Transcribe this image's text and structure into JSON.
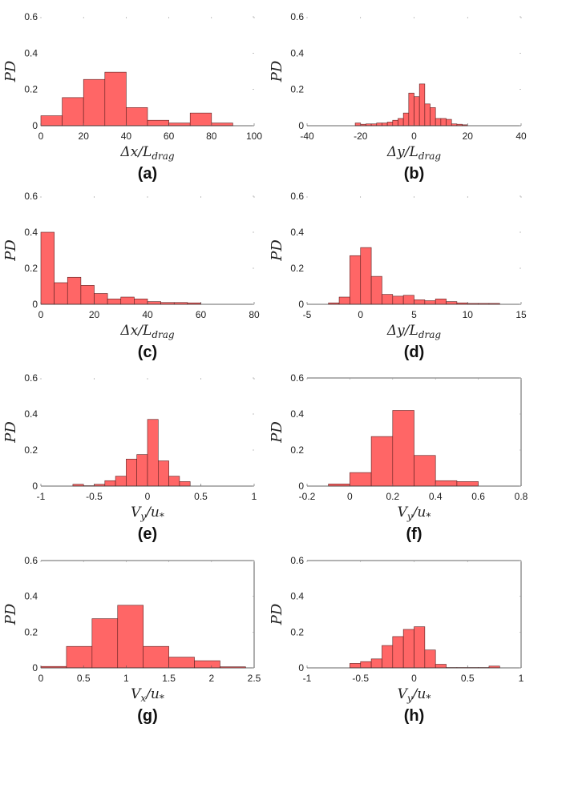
{
  "figure": {
    "bar_color": "#ff6666",
    "bar_edge": "#5a1f1f"
  },
  "chart_data": [
    {
      "type": "bar",
      "caption": "(a)",
      "xlabel": "Δx/L",
      "xlabel_sub": "drag",
      "ylabel": "PD",
      "xlim": [
        0,
        100
      ],
      "ylim": [
        0,
        0.6
      ],
      "xticks": [
        0,
        20,
        40,
        60,
        80,
        100
      ],
      "xtick_labels": [
        "0",
        "20",
        "40",
        "60",
        "80",
        "100"
      ],
      "yticks": [
        0,
        0.2,
        0.4,
        0.6
      ],
      "ytick_labels": [
        "0",
        "0.2",
        "0.4",
        "0.6"
      ],
      "axes_box": false,
      "bins": [
        [
          0,
          10,
          0.055
        ],
        [
          10,
          20,
          0.155
        ],
        [
          20,
          30,
          0.255
        ],
        [
          30,
          40,
          0.295
        ],
        [
          40,
          50,
          0.1
        ],
        [
          50,
          60,
          0.03
        ],
        [
          60,
          70,
          0.015
        ],
        [
          70,
          80,
          0.07
        ],
        [
          80,
          90,
          0.015
        ]
      ]
    },
    {
      "type": "bar",
      "caption": "(b)",
      "xlabel": "Δy/L",
      "xlabel_sub": "drag",
      "ylabel": "PD",
      "xlim": [
        -40,
        40
      ],
      "ylim": [
        0,
        0.6
      ],
      "xticks": [
        -40,
        -20,
        0,
        20,
        40
      ],
      "xtick_labels": [
        "-40",
        "-20",
        "0",
        "20",
        "40"
      ],
      "yticks": [
        0,
        0.2,
        0.4,
        0.6
      ],
      "ytick_labels": [
        "0",
        "0.2",
        "0.4",
        "0.6"
      ],
      "axes_box": false,
      "bins": [
        [
          -22,
          -20,
          0.015
        ],
        [
          -20,
          -18,
          0.008
        ],
        [
          -18,
          -16,
          0.01
        ],
        [
          -16,
          -14,
          0.01
        ],
        [
          -14,
          -12,
          0.015
        ],
        [
          -12,
          -10,
          0.015
        ],
        [
          -10,
          -8,
          0.02
        ],
        [
          -8,
          -6,
          0.03
        ],
        [
          -6,
          -4,
          0.04
        ],
        [
          -4,
          -2,
          0.07
        ],
        [
          -2,
          0,
          0.18
        ],
        [
          0,
          2,
          0.16
        ],
        [
          2,
          4,
          0.23
        ],
        [
          4,
          6,
          0.12
        ],
        [
          6,
          8,
          0.1
        ],
        [
          8,
          10,
          0.04
        ],
        [
          10,
          12,
          0.04
        ],
        [
          12,
          14,
          0.035
        ],
        [
          14,
          16,
          0.01
        ],
        [
          16,
          18,
          0.008
        ],
        [
          18,
          20,
          0.005
        ]
      ]
    },
    {
      "type": "bar",
      "caption": "(c)",
      "xlabel": "Δx/L",
      "xlabel_sub": "drag",
      "ylabel": "PD",
      "xlim": [
        0,
        80
      ],
      "ylim": [
        0,
        0.6
      ],
      "xticks": [
        0,
        20,
        40,
        60,
        80
      ],
      "xtick_labels": [
        "0",
        "20",
        "40",
        "60",
        "80"
      ],
      "yticks": [
        0,
        0.2,
        0.4,
        0.6
      ],
      "ytick_labels": [
        "0",
        "0.2",
        "0.4",
        "0.6"
      ],
      "axes_box": false,
      "bins": [
        [
          0,
          5,
          0.4
        ],
        [
          5,
          10,
          0.12
        ],
        [
          10,
          15,
          0.15
        ],
        [
          15,
          20,
          0.105
        ],
        [
          20,
          25,
          0.06
        ],
        [
          25,
          30,
          0.03
        ],
        [
          30,
          35,
          0.04
        ],
        [
          35,
          40,
          0.03
        ],
        [
          40,
          45,
          0.015
        ],
        [
          45,
          50,
          0.01
        ],
        [
          50,
          55,
          0.01
        ],
        [
          55,
          60,
          0.008
        ]
      ]
    },
    {
      "type": "bar",
      "caption": "(d)",
      "xlabel": "Δy/L",
      "xlabel_sub": "drag",
      "ylabel": "PD",
      "xlim": [
        -5,
        15
      ],
      "ylim": [
        0,
        0.6
      ],
      "xticks": [
        -5,
        0,
        5,
        10,
        15
      ],
      "xtick_labels": [
        "-5",
        "0",
        "5",
        "10",
        "15"
      ],
      "yticks": [
        0,
        0.2,
        0.4,
        0.6
      ],
      "ytick_labels": [
        "0",
        "0.2",
        "0.4",
        "0.6"
      ],
      "axes_box": false,
      "bins": [
        [
          -3,
          -2,
          0.008
        ],
        [
          -2,
          -1,
          0.04
        ],
        [
          -1,
          0,
          0.27
        ],
        [
          0,
          1,
          0.315
        ],
        [
          1,
          2,
          0.155
        ],
        [
          2,
          3,
          0.055
        ],
        [
          3,
          4,
          0.045
        ],
        [
          4,
          5,
          0.05
        ],
        [
          5,
          6,
          0.025
        ],
        [
          6,
          7,
          0.02
        ],
        [
          7,
          8,
          0.03
        ],
        [
          8,
          9,
          0.015
        ],
        [
          9,
          10,
          0.008
        ],
        [
          10,
          11,
          0.005
        ],
        [
          11,
          12,
          0.005
        ],
        [
          12,
          13,
          0.005
        ]
      ]
    },
    {
      "type": "bar",
      "caption": "(e)",
      "xlabel": "V",
      "xlabel_sub": "y",
      "xlabel_tail": "/u",
      "xlabel_tail_sub": "*",
      "ylabel": "PD",
      "xlim": [
        -1,
        1
      ],
      "ylim": [
        0,
        0.6
      ],
      "xticks": [
        -1,
        -0.5,
        0,
        0.5,
        1
      ],
      "xtick_labels": [
        "-1",
        "-0.5",
        "0",
        "0.5",
        "1"
      ],
      "yticks": [
        0,
        0.2,
        0.4,
        0.6
      ],
      "ytick_labels": [
        "0",
        "0.2",
        "0.4",
        "0.6"
      ],
      "axes_box": false,
      "bins": [
        [
          -0.7,
          -0.6,
          0.01
        ],
        [
          -0.6,
          -0.5,
          0.002
        ],
        [
          -0.5,
          -0.4,
          0.01
        ],
        [
          -0.4,
          -0.3,
          0.03
        ],
        [
          -0.3,
          -0.2,
          0.055
        ],
        [
          -0.2,
          -0.1,
          0.15
        ],
        [
          -0.1,
          0,
          0.175
        ],
        [
          0,
          0.1,
          0.37
        ],
        [
          0.1,
          0.2,
          0.14
        ],
        [
          0.2,
          0.3,
          0.055
        ],
        [
          0.3,
          0.4,
          0.025
        ]
      ]
    },
    {
      "type": "bar",
      "caption": "(f)",
      "xlabel": "V",
      "xlabel_sub": "y",
      "xlabel_tail": "/u",
      "xlabel_tail_sub": "*",
      "ylabel": "PD",
      "xlim": [
        -0.2,
        0.8
      ],
      "ylim": [
        0,
        0.6
      ],
      "xticks": [
        -0.2,
        0,
        0.2,
        0.4,
        0.6,
        0.8
      ],
      "xtick_labels": [
        "-0.2",
        "0",
        "0.2",
        "0.4",
        "0.6",
        "0.8"
      ],
      "yticks": [
        0,
        0.2,
        0.4,
        0.6
      ],
      "ytick_labels": [
        "0",
        "0.2",
        "0.4",
        "0.6"
      ],
      "axes_box": true,
      "bins": [
        [
          -0.1,
          0,
          0.012
        ],
        [
          0,
          0.1,
          0.075
        ],
        [
          0.1,
          0.2,
          0.275
        ],
        [
          0.2,
          0.3,
          0.42
        ],
        [
          0.3,
          0.4,
          0.17
        ],
        [
          0.4,
          0.5,
          0.03
        ],
        [
          0.5,
          0.6,
          0.025
        ]
      ]
    },
    {
      "type": "bar",
      "caption": "(g)",
      "xlabel": "V",
      "xlabel_sub": "x",
      "xlabel_tail": "/u",
      "xlabel_tail_sub": "*",
      "ylabel": "PD",
      "xlim": [
        0,
        2.5
      ],
      "ylim": [
        0,
        0.6
      ],
      "xticks": [
        0,
        0.5,
        1,
        1.5,
        2,
        2.5
      ],
      "xtick_labels": [
        "0",
        "0.5",
        "1",
        "1.5",
        "2",
        "2.5"
      ],
      "yticks": [
        0,
        0.2,
        0.4,
        0.6
      ],
      "ytick_labels": [
        "0",
        "0.2",
        "0.4",
        "0.6"
      ],
      "axes_box": true,
      "bins": [
        [
          0,
          0.3,
          0.008
        ],
        [
          0.3,
          0.6,
          0.12
        ],
        [
          0.6,
          0.9,
          0.275
        ],
        [
          0.9,
          1.2,
          0.35
        ],
        [
          1.2,
          1.5,
          0.12
        ],
        [
          1.5,
          1.8,
          0.06
        ],
        [
          1.8,
          2.1,
          0.04
        ],
        [
          2.1,
          2.4,
          0.006
        ]
      ]
    },
    {
      "type": "bar",
      "caption": "(h)",
      "xlabel": "V",
      "xlabel_sub": "y",
      "xlabel_tail": "/u",
      "xlabel_tail_sub": "*",
      "ylabel": "PD",
      "xlim": [
        -1,
        1
      ],
      "ylim": [
        0,
        0.6
      ],
      "xticks": [
        -1,
        -0.5,
        0,
        0.5,
        1
      ],
      "xtick_labels": [
        "-1",
        "-0.5",
        "0",
        "0.5",
        "1"
      ],
      "yticks": [
        0,
        0.2,
        0.4,
        0.6
      ],
      "ytick_labels": [
        "0",
        "0.2",
        "0.4",
        "0.6"
      ],
      "axes_box": true,
      "bins": [
        [
          -0.6,
          -0.5,
          0.025
        ],
        [
          -0.5,
          -0.4,
          0.035
        ],
        [
          -0.4,
          -0.3,
          0.05
        ],
        [
          -0.3,
          -0.2,
          0.125
        ],
        [
          -0.2,
          -0.1,
          0.175
        ],
        [
          -0.1,
          0,
          0.215
        ],
        [
          0,
          0.1,
          0.23
        ],
        [
          0.1,
          0.2,
          0.1
        ],
        [
          0.2,
          0.3,
          0.02
        ],
        [
          0.3,
          0.4,
          0.002
        ],
        [
          0.4,
          0.5,
          0.002
        ],
        [
          0.5,
          0.6,
          0.002
        ],
        [
          0.6,
          0.7,
          0.002
        ],
        [
          0.7,
          0.8,
          0.01
        ]
      ]
    }
  ]
}
